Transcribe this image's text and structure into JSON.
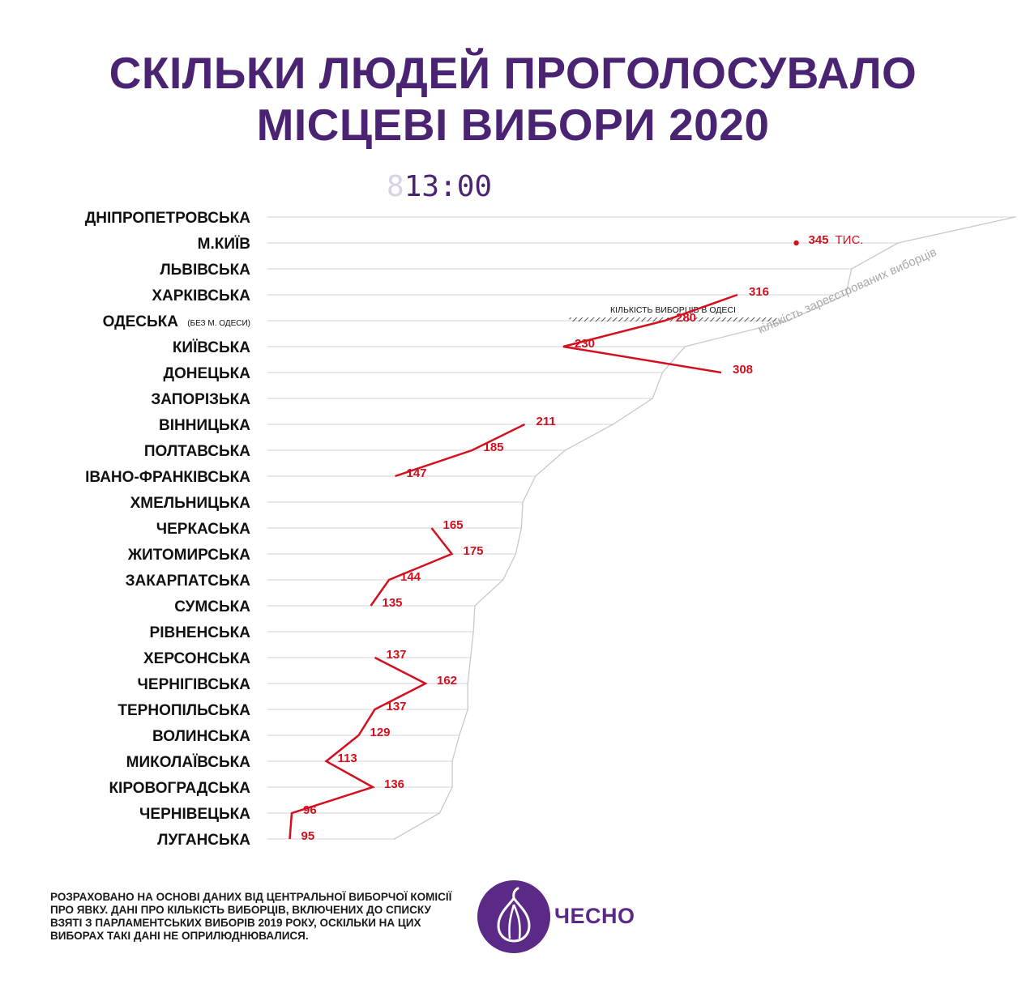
{
  "title_line1": "СКІЛЬКИ ЛЮДЕЙ ПРОГОЛОСУВАЛО",
  "title_line2": "МІСЦЕВІ ВИБОРИ 2020",
  "clock": {
    "ghost": "8",
    "time": "13:00"
  },
  "chart_data": {
    "type": "line",
    "categories": [
      "ДНІПРОПЕТРОВСЬКА",
      "М.КИЇВ",
      "ЛЬВІВСЬКА",
      "ХАРКІВСЬКА",
      "ОДЕСЬКА",
      "КИЇВСЬКА",
      "ДОНЕЦЬКА",
      "ЗАПОРІЗЬКА",
      "ВІННИЦЬКА",
      "ПОЛТАВСЬКА",
      "ІВАНО-ФРАНКІВСЬКА",
      "ХМЕЛЬНИЦЬКА",
      "ЧЕРКАСЬКА",
      "ЖИТОМИРСЬКА",
      "ЗАКАРПАТСЬКА",
      "СУМСЬКА",
      "РІВНЕНСЬКА",
      "ХЕРСОНСЬКА",
      "ЧЕРНІГІВСЬКА",
      "ТЕРНОПІЛЬСЬКА",
      "ВОЛИНСЬКА",
      "МИКОЛАЇВСЬКА",
      "КІРОВОГРАДСЬКА",
      "ЧЕРНІВЕЦЬКА",
      "ЛУГАНСЬКА"
    ],
    "category_notes": {
      "ОДЕСЬКА": "(БЕЗ М. ОДЕСИ)"
    },
    "series": [
      {
        "name": "",
        "color": "#d4101f",
        "values": [
          null,
          345,
          null,
          316,
          280,
          230,
          308,
          null,
          211,
          185,
          147,
          null,
          165,
          175,
          144,
          135,
          null,
          137,
          162,
          137,
          129,
          113,
          136,
          96,
          95
        ],
        "value_labels": [
          "",
          "345",
          "",
          "316",
          "280",
          "230",
          "308",
          "",
          "211",
          "185",
          "147",
          "",
          "165",
          "175",
          "144",
          "135",
          "",
          "137",
          "162",
          "137",
          "129",
          "113",
          "136",
          "96",
          "95"
        ],
        "unit_label": "ТИС."
      },
      {
        "name": "кількість зареєстрованих виборців",
        "color": "#c8c8c8",
        "values": [
          2650,
          2235,
          2070,
          2050,
          1845,
          1480,
          1400,
          1365,
          1225,
          1055,
          950,
          905,
          900,
          880,
          835,
          735,
          730,
          720,
          710,
          710,
          680,
          655,
          655,
          610,
          450
        ]
      }
    ],
    "annotations": [
      {
        "text": "КІЛЬКІСТЬ ВИБОРЦІВ В ОДЕСІ",
        "row": "ОДЕСЬКА",
        "from": 1070,
        "to": 1805
      }
    ],
    "xlim": [
      0,
      2700
    ],
    "grid": true
  },
  "footnote": "РОЗРАХОВАНО НА ОСНОВІ ДАНИХ ВІД ЦЕНТРАЛЬНОЇ ВИБОРЧОЇ КОМІСІЇ ПРО ЯВКУ. ДАНІ ПРО КІЛЬКІСТЬ ВИБОРЦІВ, ВКЛЮЧЕНИХ ДО СПИСКУ ВЗЯТІ З ПАРЛАМЕНТСЬКИХ ВИБОРІВ 2019 РОКУ, ОСКІЛЬКИ НА ЦИХ ВИБОРАХ ТАКІ ДАНІ НЕ ОПРИЛЮДНЮВАЛИСЯ.",
  "logo": {
    "text": "ЧЕСНО",
    "icon": "garlic-icon",
    "color": "#5b2a86"
  }
}
